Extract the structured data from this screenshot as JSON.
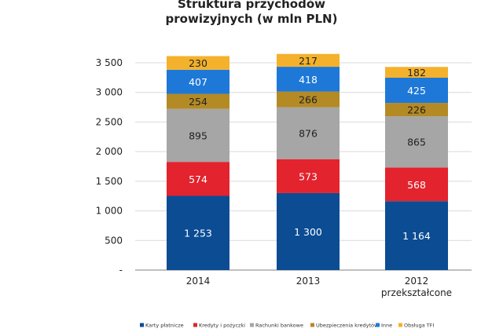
{
  "chart_data": {
    "type": "bar",
    "stacked": true,
    "title": "Struktura przychodów",
    "subtitle": "prowizyjnych (w mln PLN)",
    "categories": [
      [
        "2014"
      ],
      [
        "2013"
      ],
      [
        "2012",
        "przekształcone"
      ]
    ],
    "ylim": [
      0,
      3500
    ],
    "y_ticks": [
      {
        "value": 0,
        "label": "-"
      },
      {
        "value": 500,
        "label": "500"
      },
      {
        "value": 1000,
        "label": "1 000"
      },
      {
        "value": 1500,
        "label": "1 500"
      },
      {
        "value": 2000,
        "label": "2 000"
      },
      {
        "value": 2500,
        "label": "2 500"
      },
      {
        "value": 3000,
        "label": "3 000"
      },
      {
        "value": 3500,
        "label": "3 500"
      }
    ],
    "grid": true,
    "legend_position": "bottom",
    "series": [
      {
        "name": "Karty płatnicze",
        "color": "#0b4c93",
        "text_color": "#ffffff",
        "values": [
          1253,
          1300,
          1164
        ],
        "labels": [
          "1 253",
          "1 300",
          "1 164"
        ]
      },
      {
        "name": "Kredyty i pożyczki",
        "color": "#e3232d",
        "text_color": "#ffffff",
        "values": [
          574,
          573,
          568
        ],
        "labels": [
          "574",
          "573",
          "568"
        ]
      },
      {
        "name": "Rachunki bankowe",
        "color": "#a6a6a6",
        "text_color": "#222222",
        "values": [
          895,
          876,
          865
        ],
        "labels": [
          "895",
          "876",
          "865"
        ]
      },
      {
        "name": "Ubezpieczenia kredytów",
        "color": "#b48a25",
        "text_color": "#222222",
        "values": [
          254,
          266,
          226
        ],
        "labels": [
          "254",
          "266",
          "226"
        ]
      },
      {
        "name": "Inne",
        "color": "#1e78d8",
        "text_color": "#ffffff",
        "values": [
          407,
          418,
          425
        ],
        "labels": [
          "407",
          "418",
          "425"
        ]
      },
      {
        "name": "Obsługa TFI",
        "color": "#f4b12b",
        "text_color": "#222222",
        "values": [
          230,
          217,
          182
        ],
        "labels": [
          "230",
          "217",
          "182"
        ]
      }
    ]
  }
}
